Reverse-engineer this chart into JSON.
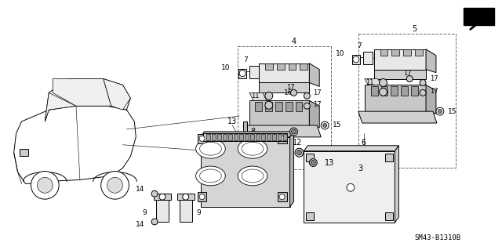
{
  "bg_color": "#ffffff",
  "line_color": "#000000",
  "part_number_text": "SM43-B1310B",
  "fig_width": 6.4,
  "fig_height": 3.19,
  "dpi": 100
}
